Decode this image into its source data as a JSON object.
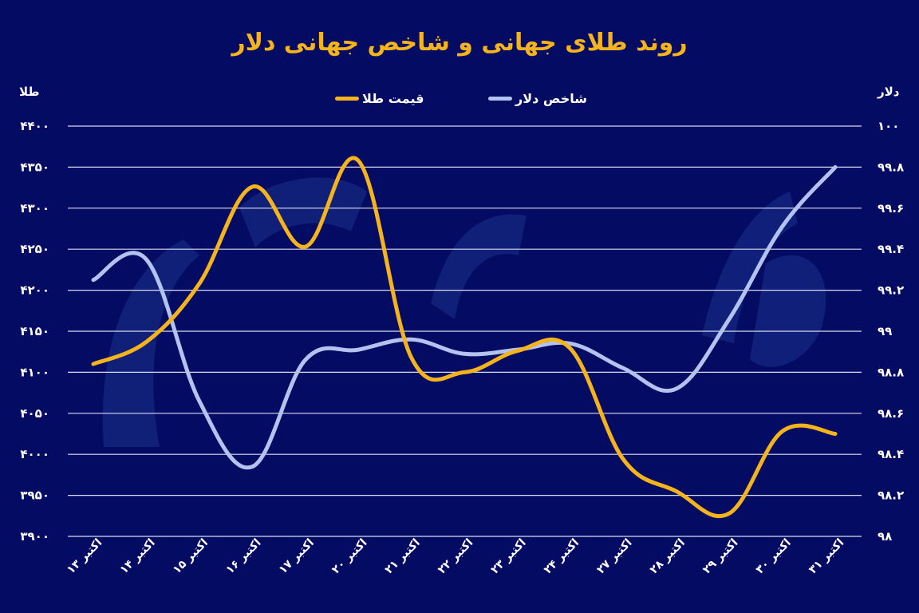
{
  "title": "روند طلای جهانی و شاخص جهانی دلار",
  "left_axis_title": "طلا",
  "right_axis_title": "دلار",
  "legend": [
    {
      "label": "شاخص دلار",
      "color": "#b3c3f0"
    },
    {
      "label": "قیمت طلا",
      "color": "#f5b31c"
    }
  ],
  "colors": {
    "background": "#040b62",
    "gold": "#f5b31c",
    "dollar": "#b3c3f0",
    "grid": "#d8dcf0",
    "title": "#f5b31c"
  },
  "chart_data": {
    "type": "line",
    "title": "روند طلای جهانی و شاخص جهانی دلار",
    "xlabel": "",
    "ylabel_left": "طلا",
    "ylabel_right": "دلار",
    "categories": [
      "۱۳ اکتبر",
      "۱۴ اکتبر",
      "۱۵ اکتبر",
      "۱۶ اکتبر",
      "۱۷ اکتبر",
      "۲۰ اکتبر",
      "۲۱ اکتبر",
      "۲۲ اکتبر",
      "۲۳ اکتبر",
      "۲۴ اکتبر",
      "۲۷ اکتبر",
      "۲۸ اکتبر",
      "۲۹ اکتبر",
      "۳۰ اکتبر",
      "۳۱ اکتبر"
    ],
    "series": [
      {
        "name": "قیمت طلا",
        "axis": "left",
        "color": "#f5b31c",
        "values": [
          4110,
          4137,
          4208,
          4326,
          4253,
          4358,
          4118,
          4100,
          4126,
          4129,
          3994,
          3955,
          3928,
          4028,
          4025
        ]
      },
      {
        "name": "شاخص دلار",
        "axis": "right",
        "color": "#b3c3f0",
        "values": [
          99.25,
          99.35,
          98.66,
          98.34,
          98.86,
          98.91,
          98.96,
          98.89,
          98.91,
          98.94,
          98.82,
          98.72,
          99.06,
          99.51,
          99.8
        ]
      }
    ],
    "ylim_left": [
      3900,
      4400
    ],
    "ylim_right": [
      98,
      100
    ],
    "yticks_left": [
      "۴۴۰۰",
      "۴۳۵۰",
      "۴۳۰۰",
      "۴۲۵۰",
      "۴۲۰۰",
      "۴۱۵۰",
      "۴۱۰۰",
      "۴۰۵۰",
      "۴۰۰۰",
      "۳۹۵۰",
      "۳۹۰۰"
    ],
    "yticks_right": [
      "۱۰۰",
      "۹۹.۸",
      "۹۹.۶",
      "۹۹.۴",
      "۹۹.۲",
      "۹۹",
      "۹۸.۸",
      "۹۸.۶",
      "۹۸.۴",
      "۹۸.۲",
      "۹۸"
    ],
    "grid": true,
    "legend_position": "top"
  }
}
